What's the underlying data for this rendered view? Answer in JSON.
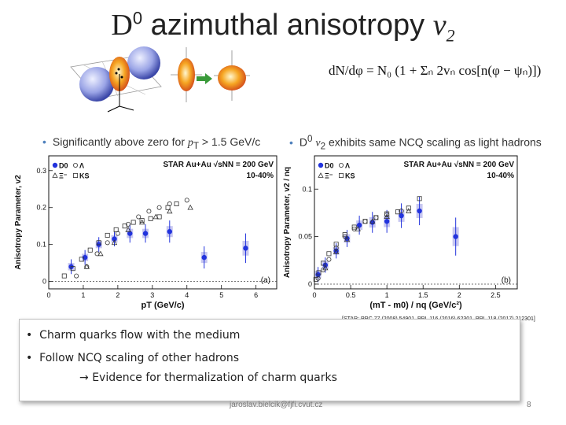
{
  "title": {
    "pre": "D",
    "sup": "0",
    "mid": " azimuthal anisotropy ",
    "var": "v",
    "sub": "2"
  },
  "formula": {
    "lhs": "dN/dφ",
    "rhs": "= N₀ (1 + Σₙ 2vₙ cos[n(φ − ψₙ)])"
  },
  "bullets": {
    "left": {
      "text": "Significantly above zero for ",
      "var": "p",
      "sub": "T",
      "tail": " > 1.5 GeV/c"
    },
    "right": {
      "pre": "D",
      "sup": "0",
      "var": "v",
      "sub": "2",
      "tail": " exhibits same NCQ scaling as light hadrons"
    }
  },
  "summary": {
    "line1": "Charm quarks flow with the medium",
    "line2": "Follow NCQ scaling of other hadrons",
    "line3": "Evidence for thermalization of charm quarks",
    "arrow": "→"
  },
  "reference": "[STAR: PRC 77 (2008) 54901, PRL 116 (2016) 62301, PRL 118 (2017) 212301]",
  "footer": {
    "email": "jaroslav.bielcik@fjfi.cvut.cz",
    "page": "8"
  },
  "colors": {
    "d0": "#2233dd",
    "d0_band": "#b9b9ee",
    "bullet": "#4f81bd",
    "summary_border": "#bfbfbf"
  },
  "chart_data": [
    {
      "type": "scatter",
      "panel_label": "(a)",
      "title": "STAR Au+Au √sNN = 200 GeV",
      "centrality": "10-40%",
      "xlabel": "pT (GeV/c)",
      "ylabel": "Anisotropy Parameter, v2",
      "xlim": [
        0,
        6.6
      ],
      "ylim": [
        -0.02,
        0.34
      ],
      "xticks": [
        "0",
        "1",
        "2",
        "3",
        "4",
        "5",
        "6"
      ],
      "yticks": [
        "0",
        "0.1",
        "0.2",
        "0.3"
      ],
      "legend": [
        "D0",
        "Λ",
        "Ξ⁻",
        "KS"
      ],
      "series": [
        {
          "name": "D0",
          "marker": "filled-circle",
          "x": [
            0.65,
            1.05,
            1.45,
            1.9,
            2.35,
            2.8,
            3.5,
            4.5,
            5.7
          ],
          "y": [
            0.04,
            0.065,
            0.1,
            0.115,
            0.13,
            0.13,
            0.135,
            0.065,
            0.09
          ],
          "err": [
            0.02,
            0.02,
            0.02,
            0.02,
            0.025,
            0.025,
            0.03,
            0.03,
            0.04
          ]
        },
        {
          "name": "KS",
          "marker": "open-square",
          "x": [
            0.45,
            0.7,
            0.95,
            1.2,
            1.45,
            1.7,
            1.95,
            2.2,
            2.45,
            2.7,
            2.95,
            3.2,
            3.45,
            3.7
          ],
          "y": [
            0.015,
            0.035,
            0.06,
            0.085,
            0.105,
            0.125,
            0.14,
            0.15,
            0.16,
            0.165,
            0.17,
            0.175,
            0.2,
            0.21
          ]
        },
        {
          "name": "Λ",
          "marker": "open-circle",
          "x": [
            0.8,
            1.1,
            1.4,
            1.7,
            2.0,
            2.3,
            2.6,
            2.9,
            3.2,
            3.5,
            4.0
          ],
          "y": [
            0.015,
            0.04,
            0.075,
            0.105,
            0.13,
            0.155,
            0.175,
            0.19,
            0.2,
            0.21,
            0.22
          ]
        },
        {
          "name": "Ξ⁻",
          "marker": "open-triangle",
          "x": [
            1.1,
            1.5,
            1.9,
            2.3,
            2.7,
            3.1,
            3.5,
            4.1
          ],
          "y": [
            0.04,
            0.075,
            0.105,
            0.14,
            0.16,
            0.175,
            0.19,
            0.2
          ]
        }
      ]
    },
    {
      "type": "scatter",
      "panel_label": "(b)",
      "title": "STAR Au+Au √sNN = 200 GeV",
      "centrality": "10-40%",
      "xlabel": "(mT - m0) / nq (GeV/c²)",
      "ylabel": "Anisotropy Parameter, v2 / nq",
      "xlim": [
        0,
        2.8
      ],
      "ylim": [
        -0.005,
        0.135
      ],
      "xticks": [
        "0",
        "0.5",
        "1",
        "1.5",
        "2",
        "2.5"
      ],
      "yticks": [
        "0",
        "0.05",
        "0.1"
      ],
      "legend": [
        "D0",
        "Λ",
        "Ξ⁻",
        "KS"
      ],
      "series": [
        {
          "name": "D0",
          "marker": "filled-circle",
          "x": [
            0.05,
            0.15,
            0.3,
            0.45,
            0.62,
            0.8,
            1.0,
            1.2,
            1.45,
            1.95
          ],
          "y": [
            0.01,
            0.02,
            0.035,
            0.048,
            0.062,
            0.065,
            0.066,
            0.072,
            0.077,
            0.05
          ],
          "err": [
            0.008,
            0.008,
            0.008,
            0.009,
            0.01,
            0.011,
            0.012,
            0.013,
            0.015,
            0.02
          ]
        },
        {
          "name": "KS",
          "marker": "open-square",
          "x": [
            0.02,
            0.06,
            0.12,
            0.2,
            0.3,
            0.42,
            0.55,
            0.7,
            0.85,
            1.0,
            1.15,
            1.3,
            1.45
          ],
          "y": [
            0.005,
            0.012,
            0.022,
            0.032,
            0.042,
            0.052,
            0.06,
            0.066,
            0.07,
            0.074,
            0.076,
            0.08,
            0.09
          ]
        },
        {
          "name": "Λ",
          "marker": "open-circle",
          "x": [
            0.05,
            0.12,
            0.2,
            0.3,
            0.42,
            0.55,
            0.7,
            0.85,
            1.0,
            1.2
          ],
          "y": [
            0.006,
            0.015,
            0.026,
            0.038,
            0.05,
            0.058,
            0.066,
            0.07,
            0.073,
            0.077
          ]
        },
        {
          "name": "Ξ⁻",
          "marker": "open-triangle",
          "x": [
            0.15,
            0.3,
            0.45,
            0.6,
            0.8,
            1.0,
            1.3
          ],
          "y": [
            0.017,
            0.034,
            0.047,
            0.058,
            0.066,
            0.071,
            0.077
          ]
        }
      ]
    }
  ]
}
